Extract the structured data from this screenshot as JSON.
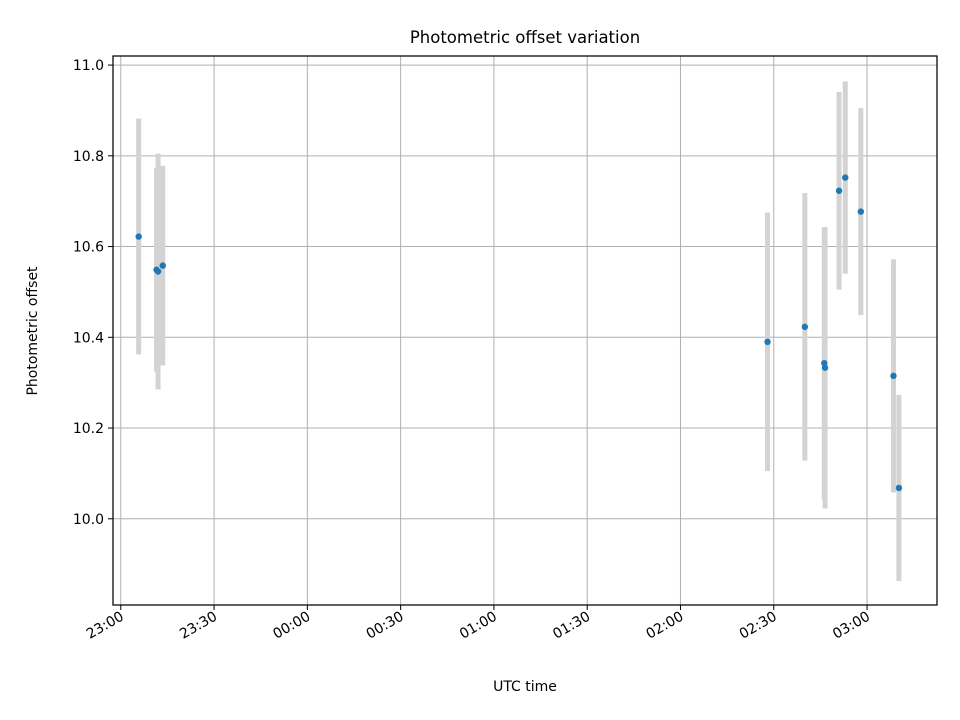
{
  "chart_data": {
    "type": "scatter",
    "title": "Photometric offset variation",
    "xlabel": "UTC time",
    "ylabel": "Photometric offset",
    "grid": true,
    "xlim": [
      "22:57:30",
      "03:22:30"
    ],
    "ylim": [
      9.81,
      11.02
    ],
    "xticks": [
      "23:00",
      "23:30",
      "00:00",
      "00:30",
      "01:00",
      "01:30",
      "02:00",
      "02:30",
      "03:00"
    ],
    "yticks": [
      "10.0",
      "10.2",
      "10.4",
      "10.6",
      "10.8",
      "11.0"
    ],
    "marker_color": "#1f77b4",
    "errorbar_color": "#d3d3d3",
    "series": [
      {
        "points": [
          {
            "x": "23:05:45",
            "y": 10.622,
            "err": 0.26
          },
          {
            "x": "23:11:30",
            "y": 10.549,
            "err": 0.225
          },
          {
            "x": "23:12:00",
            "y": 10.545,
            "err": 0.26
          },
          {
            "x": "23:13:30",
            "y": 10.558,
            "err": 0.22
          },
          {
            "x": "02:28:00",
            "y": 10.39,
            "err": 0.285
          },
          {
            "x": "02:40:00",
            "y": 10.423,
            "err": 0.295
          },
          {
            "x": "02:46:15",
            "y": 10.343,
            "err": 0.3
          },
          {
            "x": "02:46:30",
            "y": 10.333,
            "err": 0.31
          },
          {
            "x": "02:51:00",
            "y": 10.723,
            "err": 0.218
          },
          {
            "x": "02:53:00",
            "y": 10.752,
            "err": 0.212
          },
          {
            "x": "02:58:00",
            "y": 10.677,
            "err": 0.228
          },
          {
            "x": "03:08:30",
            "y": 10.315,
            "err": 0.257
          },
          {
            "x": "03:10:15",
            "y": 10.068,
            "err": 0.205
          }
        ]
      }
    ]
  }
}
